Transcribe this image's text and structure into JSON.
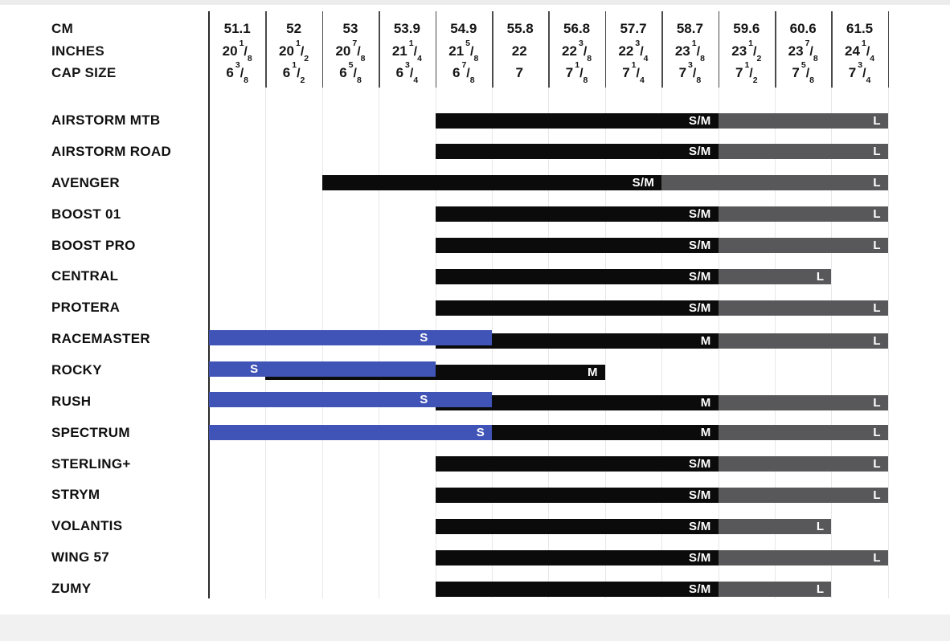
{
  "colors": {
    "s": "#4053b6",
    "m": "#0b0b0b",
    "sm": "#0b0b0b",
    "l": "#58585a",
    "grid_light": "#e8e8e8",
    "grid_dark": "#4a4a4a",
    "axis_dark": "#2a2a2a"
  },
  "header": {
    "row_labels": [
      "CM",
      "INCHES",
      "CAP SIZE"
    ],
    "columns": [
      {
        "cm": "51.1",
        "inches": {
          "w": "20",
          "n": "1",
          "d": "8"
        },
        "cap": {
          "w": "6",
          "n": "3",
          "d": "8"
        }
      },
      {
        "cm": "52",
        "inches": {
          "w": "20",
          "n": "1",
          "d": "2"
        },
        "cap": {
          "w": "6",
          "n": "1",
          "d": "2"
        }
      },
      {
        "cm": "53",
        "inches": {
          "w": "20",
          "n": "7",
          "d": "8"
        },
        "cap": {
          "w": "6",
          "n": "5",
          "d": "8"
        }
      },
      {
        "cm": "53.9",
        "inches": {
          "w": "21",
          "n": "1",
          "d": "4"
        },
        "cap": {
          "w": "6",
          "n": "3",
          "d": "4"
        }
      },
      {
        "cm": "54.9",
        "inches": {
          "w": "21",
          "n": "5",
          "d": "8"
        },
        "cap": {
          "w": "6",
          "n": "7",
          "d": "8"
        }
      },
      {
        "cm": "55.8",
        "inches": {
          "w": "22"
        },
        "cap": {
          "w": "7"
        }
      },
      {
        "cm": "56.8",
        "inches": {
          "w": "22",
          "n": "3",
          "d": "8"
        },
        "cap": {
          "w": "7",
          "n": "1",
          "d": "8"
        }
      },
      {
        "cm": "57.7",
        "inches": {
          "w": "22",
          "n": "3",
          "d": "4"
        },
        "cap": {
          "w": "7",
          "n": "1",
          "d": "4"
        }
      },
      {
        "cm": "58.7",
        "inches": {
          "w": "23",
          "n": "1",
          "d": "8"
        },
        "cap": {
          "w": "7",
          "n": "3",
          "d": "8"
        }
      },
      {
        "cm": "59.6",
        "inches": {
          "w": "23",
          "n": "1",
          "d": "2"
        },
        "cap": {
          "w": "7",
          "n": "1",
          "d": "2"
        }
      },
      {
        "cm": "60.6",
        "inches": {
          "w": "23",
          "n": "7",
          "d": "8"
        },
        "cap": {
          "w": "7",
          "n": "5",
          "d": "8"
        }
      },
      {
        "cm": "61.5",
        "inches": {
          "w": "24",
          "n": "1",
          "d": "4"
        },
        "cap": {
          "w": "7",
          "n": "3",
          "d": "4"
        }
      }
    ]
  },
  "rows": [
    {
      "name": "AIRSTORM MTB",
      "overlap": false,
      "segments": [
        {
          "label": "S/M",
          "size": "sm",
          "start": 4,
          "end": 9
        },
        {
          "label": "L",
          "size": "l",
          "start": 9,
          "end": 12
        }
      ]
    },
    {
      "name": "AIRSTORM ROAD",
      "overlap": false,
      "segments": [
        {
          "label": "S/M",
          "size": "sm",
          "start": 4,
          "end": 9
        },
        {
          "label": "L",
          "size": "l",
          "start": 9,
          "end": 12
        }
      ]
    },
    {
      "name": "AVENGER",
      "overlap": false,
      "segments": [
        {
          "label": "S/M",
          "size": "sm",
          "start": 2,
          "end": 8
        },
        {
          "label": "L",
          "size": "l",
          "start": 8,
          "end": 12
        }
      ]
    },
    {
      "name": "BOOST 01",
      "overlap": false,
      "segments": [
        {
          "label": "S/M",
          "size": "sm",
          "start": 4,
          "end": 9
        },
        {
          "label": "L",
          "size": "l",
          "start": 9,
          "end": 12
        }
      ]
    },
    {
      "name": "BOOST PRO",
      "overlap": false,
      "segments": [
        {
          "label": "S/M",
          "size": "sm",
          "start": 4,
          "end": 9
        },
        {
          "label": "L",
          "size": "l",
          "start": 9,
          "end": 12
        }
      ]
    },
    {
      "name": "CENTRAL",
      "overlap": false,
      "segments": [
        {
          "label": "S/M",
          "size": "sm",
          "start": 4,
          "end": 9
        },
        {
          "label": "L",
          "size": "l",
          "start": 9,
          "end": 11
        }
      ]
    },
    {
      "name": "PROTERA",
      "overlap": false,
      "segments": [
        {
          "label": "S/M",
          "size": "sm",
          "start": 4,
          "end": 9
        },
        {
          "label": "L",
          "size": "l",
          "start": 9,
          "end": 12
        }
      ]
    },
    {
      "name": "RACEMASTER",
      "overlap": true,
      "segments": [
        {
          "label": "S",
          "size": "s",
          "start": 0,
          "end": 5,
          "label_at": 4
        },
        {
          "label": "M",
          "size": "m",
          "start": 4,
          "end": 9
        },
        {
          "label": "L",
          "size": "l",
          "start": 9,
          "end": 12
        }
      ]
    },
    {
      "name": "ROCKY",
      "overlap": true,
      "segments": [
        {
          "label": "S",
          "size": "s",
          "start": 0,
          "end": 4,
          "label_at": 1
        },
        {
          "label": "M",
          "size": "m",
          "start": 1,
          "end": 7
        }
      ]
    },
    {
      "name": "RUSH",
      "overlap": true,
      "segments": [
        {
          "label": "S",
          "size": "s",
          "start": 0,
          "end": 5,
          "label_at": 4
        },
        {
          "label": "M",
          "size": "m",
          "start": 4,
          "end": 9
        },
        {
          "label": "L",
          "size": "l",
          "start": 9,
          "end": 12
        }
      ]
    },
    {
      "name": "SPECTRUM",
      "overlap": false,
      "segments": [
        {
          "label": "S",
          "size": "s",
          "start": 0,
          "end": 5
        },
        {
          "label": "M",
          "size": "m",
          "start": 5,
          "end": 9
        },
        {
          "label": "L",
          "size": "l",
          "start": 9,
          "end": 12
        }
      ]
    },
    {
      "name": "STERLING+",
      "overlap": false,
      "segments": [
        {
          "label": "S/M",
          "size": "sm",
          "start": 4,
          "end": 9
        },
        {
          "label": "L",
          "size": "l",
          "start": 9,
          "end": 12
        }
      ]
    },
    {
      "name": "STRYM",
      "overlap": false,
      "segments": [
        {
          "label": "S/M",
          "size": "sm",
          "start": 4,
          "end": 9
        },
        {
          "label": "L",
          "size": "l",
          "start": 9,
          "end": 12
        }
      ]
    },
    {
      "name": "VOLANTIS",
      "overlap": false,
      "segments": [
        {
          "label": "S/M",
          "size": "sm",
          "start": 4,
          "end": 9
        },
        {
          "label": "L",
          "size": "l",
          "start": 9,
          "end": 11
        }
      ]
    },
    {
      "name": "WING 57",
      "overlap": false,
      "segments": [
        {
          "label": "S/M",
          "size": "sm",
          "start": 4,
          "end": 9
        },
        {
          "label": "L",
          "size": "l",
          "start": 9,
          "end": 12
        }
      ]
    },
    {
      "name": "ZUMY",
      "overlap": false,
      "segments": [
        {
          "label": "S/M",
          "size": "sm",
          "start": 4,
          "end": 9
        },
        {
          "label": "L",
          "size": "l",
          "start": 9,
          "end": 11
        }
      ]
    }
  ],
  "chart_data": {
    "type": "table",
    "title": "Helmet size chart",
    "x_axis": {
      "cm": [
        51.1,
        52,
        53,
        53.9,
        54.9,
        55.8,
        56.8,
        57.7,
        58.7,
        59.6,
        60.6,
        61.5
      ],
      "inches": [
        "20 1/8",
        "20 1/2",
        "20 7/8",
        "21 1/4",
        "21 5/8",
        "22",
        "22 3/8",
        "22 3/4",
        "23 1/8",
        "23 1/2",
        "23 7/8",
        "24 1/4"
      ],
      "cap_size": [
        "6 3/8",
        "6 1/2",
        "6 5/8",
        "6 3/4",
        "6 7/8",
        "7",
        "7 1/8",
        "7 1/4",
        "7 3/8",
        "7 1/2",
        "7 5/8",
        "7 3/4"
      ]
    },
    "products": [
      {
        "name": "AIRSTORM MTB",
        "ranges": [
          {
            "size": "S/M",
            "cm_from": 54.9,
            "cm_to": 58.7
          },
          {
            "size": "L",
            "cm_from": 59.6,
            "cm_to": 61.5
          }
        ]
      },
      {
        "name": "AIRSTORM ROAD",
        "ranges": [
          {
            "size": "S/M",
            "cm_from": 54.9,
            "cm_to": 58.7
          },
          {
            "size": "L",
            "cm_from": 59.6,
            "cm_to": 61.5
          }
        ]
      },
      {
        "name": "AVENGER",
        "ranges": [
          {
            "size": "S/M",
            "cm_from": 53,
            "cm_to": 57.7
          },
          {
            "size": "L",
            "cm_from": 58.7,
            "cm_to": 61.5
          }
        ]
      },
      {
        "name": "BOOST 01",
        "ranges": [
          {
            "size": "S/M",
            "cm_from": 54.9,
            "cm_to": 58.7
          },
          {
            "size": "L",
            "cm_from": 59.6,
            "cm_to": 61.5
          }
        ]
      },
      {
        "name": "BOOST PRO",
        "ranges": [
          {
            "size": "S/M",
            "cm_from": 54.9,
            "cm_to": 58.7
          },
          {
            "size": "L",
            "cm_from": 59.6,
            "cm_to": 61.5
          }
        ]
      },
      {
        "name": "CENTRAL",
        "ranges": [
          {
            "size": "S/M",
            "cm_from": 54.9,
            "cm_to": 58.7
          },
          {
            "size": "L",
            "cm_from": 59.6,
            "cm_to": 60.6
          }
        ]
      },
      {
        "name": "PROTERA",
        "ranges": [
          {
            "size": "S/M",
            "cm_from": 54.9,
            "cm_to": 58.7
          },
          {
            "size": "L",
            "cm_from": 59.6,
            "cm_to": 61.5
          }
        ]
      },
      {
        "name": "RACEMASTER",
        "ranges": [
          {
            "size": "S",
            "cm_from": 51.1,
            "cm_to": 54.9
          },
          {
            "size": "M",
            "cm_from": 54.9,
            "cm_to": 58.7
          },
          {
            "size": "L",
            "cm_from": 59.6,
            "cm_to": 61.5
          }
        ]
      },
      {
        "name": "ROCKY",
        "ranges": [
          {
            "size": "S",
            "cm_from": 51.1,
            "cm_to": 53.9
          },
          {
            "size": "M",
            "cm_from": 52,
            "cm_to": 56.8
          }
        ]
      },
      {
        "name": "RUSH",
        "ranges": [
          {
            "size": "S",
            "cm_from": 51.1,
            "cm_to": 54.9
          },
          {
            "size": "M",
            "cm_from": 54.9,
            "cm_to": 58.7
          },
          {
            "size": "L",
            "cm_from": 59.6,
            "cm_to": 61.5
          }
        ]
      },
      {
        "name": "SPECTRUM",
        "ranges": [
          {
            "size": "S",
            "cm_from": 51.1,
            "cm_to": 54.9
          },
          {
            "size": "M",
            "cm_from": 55.8,
            "cm_to": 58.7
          },
          {
            "size": "L",
            "cm_from": 59.6,
            "cm_to": 61.5
          }
        ]
      },
      {
        "name": "STERLING+",
        "ranges": [
          {
            "size": "S/M",
            "cm_from": 54.9,
            "cm_to": 58.7
          },
          {
            "size": "L",
            "cm_from": 59.6,
            "cm_to": 61.5
          }
        ]
      },
      {
        "name": "STRYM",
        "ranges": [
          {
            "size": "S/M",
            "cm_from": 54.9,
            "cm_to": 58.7
          },
          {
            "size": "L",
            "cm_from": 59.6,
            "cm_to": 61.5
          }
        ]
      },
      {
        "name": "VOLANTIS",
        "ranges": [
          {
            "size": "S/M",
            "cm_from": 54.9,
            "cm_to": 58.7
          },
          {
            "size": "L",
            "cm_from": 59.6,
            "cm_to": 60.6
          }
        ]
      },
      {
        "name": "WING 57",
        "ranges": [
          {
            "size": "S/M",
            "cm_from": 54.9,
            "cm_to": 58.7
          },
          {
            "size": "L",
            "cm_from": 59.6,
            "cm_to": 61.5
          }
        ]
      },
      {
        "name": "ZUMY",
        "ranges": [
          {
            "size": "S/M",
            "cm_from": 54.9,
            "cm_to": 58.7
          },
          {
            "size": "L",
            "cm_from": 59.6,
            "cm_to": 60.6
          }
        ]
      }
    ]
  }
}
